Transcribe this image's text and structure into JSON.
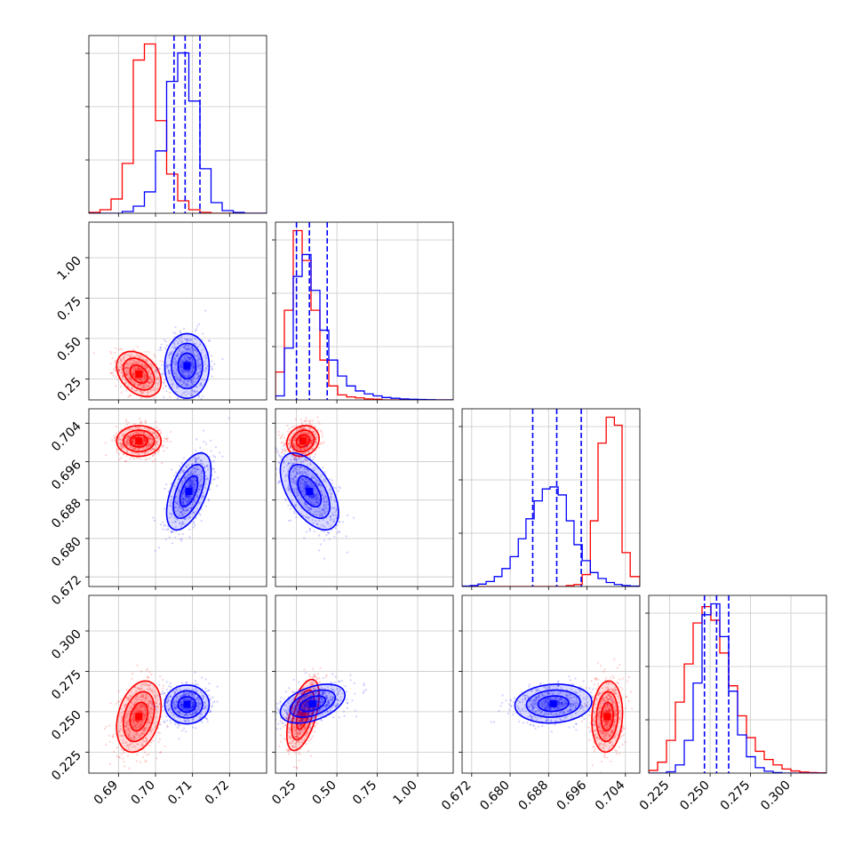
{
  "chart_data": {
    "type": "corner",
    "title": "",
    "grid": true,
    "series": [
      {
        "color": "#ff0000"
      },
      {
        "color": "#0000ff"
      }
    ],
    "parameters": [
      {
        "range": [
          0.682,
          0.73
        ],
        "ticks": [
          0.69,
          0.7,
          0.71,
          0.72
        ],
        "tick_labels": [
          "0.69",
          "0.70",
          "0.71",
          "0.72"
        ],
        "quantiles": [
          0.705,
          0.708,
          0.712
        ],
        "hist": {
          "bin_edges": [
            0.682,
            0.685,
            0.688,
            0.691,
            0.694,
            0.697,
            0.7,
            0.703,
            0.706,
            0.709,
            0.712,
            0.715,
            0.718,
            0.721,
            0.724,
            0.727,
            0.73
          ],
          "series": [
            [
              0.005,
              0.02,
              0.08,
              0.28,
              0.86,
              0.95,
              0.52,
              0.22,
              0.07,
              0.02,
              0.005,
              0.0,
              0.0,
              0.0,
              0.0,
              0.0
            ],
            [
              0.0,
              0.0,
              0.0,
              0.01,
              0.04,
              0.12,
              0.35,
              0.74,
              0.9,
              0.63,
              0.25,
              0.06,
              0.015,
              0.005,
              0.0,
              0.0
            ]
          ]
        }
      },
      {
        "range": [
          0.12,
          1.22
        ],
        "ticks": [
          0.25,
          0.5,
          0.75,
          1.0
        ],
        "tick_labels": [
          "0.25",
          "0.50",
          "0.75",
          "1.00"
        ],
        "quantiles": [
          0.25,
          0.33,
          0.44
        ],
        "hist": {
          "bin_edges": [
            0.12,
            0.175,
            0.23,
            0.285,
            0.34,
            0.395,
            0.45,
            0.505,
            0.56,
            0.615,
            0.67,
            0.725,
            0.78,
            0.835,
            0.89,
            0.945,
            1.0,
            1.055,
            1.11,
            1.165,
            1.22
          ],
          "series": [
            [
              0.14,
              0.45,
              0.85,
              0.7,
              0.45,
              0.2,
              0.07,
              0.025,
              0.015,
              0.01,
              0.005,
              0.003,
              0.0,
              0.0,
              0.0,
              0.0,
              0.0,
              0.0,
              0.0,
              0.0
            ],
            [
              0.02,
              0.26,
              0.62,
              0.73,
              0.55,
              0.35,
              0.2,
              0.12,
              0.07,
              0.045,
              0.03,
              0.02,
              0.012,
              0.008,
              0.005,
              0.003,
              0.002,
              0.001,
              0.0,
              0.0
            ]
          ]
        }
      },
      {
        "range": [
          0.67,
          0.707
        ],
        "ticks": [
          0.672,
          0.68,
          0.688,
          0.696,
          0.704
        ],
        "tick_labels": [
          "0.672",
          "0.680",
          "0.688",
          "0.696",
          "0.704"
        ],
        "quantiles": [
          0.6847,
          0.6897,
          0.6948
        ],
        "hist": {
          "bin_edges": [
            0.67,
            0.6717,
            0.6733,
            0.675,
            0.6767,
            0.6783,
            0.68,
            0.6817,
            0.6833,
            0.685,
            0.6867,
            0.6883,
            0.69,
            0.6917,
            0.6933,
            0.695,
            0.6967,
            0.6983,
            0.7,
            0.7017,
            0.7033,
            0.705,
            0.707
          ],
          "series": [
            [
              0.0,
              0.0,
              0.0,
              0.0,
              0.0,
              0.0,
              0.0,
              0.0,
              0.0,
              0.0,
              0.0,
              0.0,
              0.0,
              0.005,
              0.01,
              0.06,
              0.33,
              0.72,
              0.85,
              0.81,
              0.17,
              0.05
            ],
            [
              0.002,
              0.005,
              0.012,
              0.025,
              0.05,
              0.09,
              0.15,
              0.24,
              0.34,
              0.43,
              0.49,
              0.5,
              0.46,
              0.33,
              0.21,
              0.13,
              0.07,
              0.04,
              0.02,
              0.01,
              0.005,
              0.002
            ]
          ]
        }
      },
      {
        "range": [
          0.212,
          0.322
        ],
        "ticks": [
          0.225,
          0.25,
          0.275,
          0.3
        ],
        "tick_labels": [
          "0.225",
          "0.250",
          "0.275",
          "0.300"
        ],
        "quantiles": [
          0.2465,
          0.254,
          0.2615
        ],
        "hist": {
          "bin_edges": [
            0.212,
            0.2175,
            0.223,
            0.2285,
            0.234,
            0.2395,
            0.245,
            0.2505,
            0.256,
            0.2615,
            0.267,
            0.2725,
            0.278,
            0.2835,
            0.289,
            0.2945,
            0.3,
            0.3055,
            0.311,
            0.3165,
            0.322
          ],
          "series": [
            [
              0.01,
              0.04,
              0.12,
              0.26,
              0.4,
              0.55,
              0.61,
              0.56,
              0.44,
              0.32,
              0.21,
              0.13,
              0.08,
              0.05,
              0.03,
              0.015,
              0.008,
              0.004,
              0.002,
              0.001
            ],
            [
              0.0,
              0.0,
              0.005,
              0.03,
              0.12,
              0.33,
              0.58,
              0.62,
              0.5,
              0.3,
              0.14,
              0.06,
              0.02,
              0.007,
              0.002,
              0.0,
              0.0,
              0.0,
              0.0,
              0.0
            ]
          ]
        }
      }
    ],
    "joint": [
      {
        "row": 1,
        "col": 0,
        "centers": [
          [
            0.6955,
            0.28
          ],
          [
            0.7085,
            0.33
          ]
        ],
        "sigmas": [
          [
            0.003,
            0.07
          ],
          [
            0.003,
            0.1
          ]
        ],
        "rho": [
          -0.35,
          0.0
        ]
      },
      {
        "row": 2,
        "col": 0,
        "centers": [
          [
            0.6955,
            0.7003
          ],
          [
            0.709,
            0.6898
          ]
        ],
        "sigmas": [
          [
            0.003,
            0.0016
          ],
          [
            0.003,
            0.004
          ]
        ],
        "rho": [
          0.0,
          0.55
        ]
      },
      {
        "row": 2,
        "col": 1,
        "centers": [
          [
            0.29,
            0.7003
          ],
          [
            0.33,
            0.6898
          ]
        ],
        "sigmas": [
          [
            0.05,
            0.0016
          ],
          [
            0.09,
            0.004
          ]
        ],
        "rho": [
          0.15,
          -0.55
        ]
      },
      {
        "row": 3,
        "col": 0,
        "centers": [
          [
            0.6955,
            0.247
          ],
          [
            0.7085,
            0.2545
          ]
        ],
        "sigmas": [
          [
            0.003,
            0.011
          ],
          [
            0.003,
            0.006
          ]
        ],
        "rho": [
          0.3,
          0.0
        ]
      },
      {
        "row": 3,
        "col": 1,
        "centers": [
          [
            0.29,
            0.248
          ],
          [
            0.35,
            0.255
          ]
        ],
        "sigmas": [
          [
            0.05,
            0.011
          ],
          [
            0.1,
            0.006
          ]
        ],
        "rho": [
          0.55,
          0.45
        ]
      },
      {
        "row": 3,
        "col": 2,
        "centers": [
          [
            0.7002,
            0.247
          ],
          [
            0.689,
            0.255
          ]
        ],
        "sigmas": [
          [
            0.0016,
            0.011
          ],
          [
            0.004,
            0.006
          ]
        ],
        "rho": [
          0.1,
          0.1
        ]
      }
    ]
  }
}
